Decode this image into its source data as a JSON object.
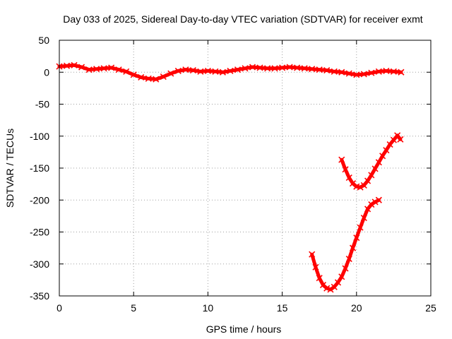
{
  "chart_data": {
    "type": "scatter",
    "title": "Day 033 of 2025, Sidereal Day-to-day VTEC variation (SDTVAR) for receiver exmt",
    "xlabel": "GPS time / hours",
    "ylabel": "SDTVAR / TECUs",
    "xlim": [
      0,
      25
    ],
    "ylim": [
      -350,
      50
    ],
    "xticks": [
      0,
      5,
      10,
      15,
      20,
      25
    ],
    "yticks": [
      -350,
      -300,
      -250,
      -200,
      -150,
      -100,
      -50,
      0,
      50
    ],
    "grid": true,
    "colors": {
      "series": "#ff0000"
    },
    "series": [
      {
        "x": [
          0.0,
          0.5,
          1.0,
          1.5,
          2.0,
          2.5,
          3.0,
          3.5,
          4.0,
          4.5,
          5.0,
          5.5,
          6.0,
          6.5,
          7.0,
          7.5,
          8.0,
          8.5,
          9.0,
          9.5,
          10.0,
          10.5,
          11.0,
          11.5,
          12.0,
          12.5,
          13.0,
          13.5,
          14.0,
          14.5,
          15.0,
          15.5,
          16.0,
          16.5,
          17.0,
          17.5,
          18.0,
          18.5,
          19.0,
          19.5,
          20.0,
          20.5,
          21.0,
          21.5,
          22.0,
          22.5,
          23.0
        ],
        "y": [
          9,
          10,
          11,
          8,
          4,
          5,
          6,
          7,
          4,
          1,
          -4,
          -8,
          -10,
          -11,
          -7,
          -2,
          2,
          4,
          3,
          1,
          2,
          1,
          0,
          2,
          4,
          6,
          8,
          7,
          6,
          6,
          7,
          8,
          7,
          6,
          5,
          4,
          3,
          1,
          0,
          -2,
          -4,
          -3,
          -1,
          1,
          2,
          1,
          0
        ]
      },
      {
        "x": [
          19.0,
          19.25,
          19.5,
          19.75,
          20.0,
          20.25,
          20.5,
          20.75,
          21.0,
          21.25,
          21.5,
          21.75,
          22.0,
          22.25,
          22.5,
          22.75,
          22.95
        ],
        "y": [
          -137,
          -152,
          -165,
          -174,
          -179,
          -180,
          -177,
          -170,
          -161,
          -151,
          -141,
          -131,
          -122,
          -113,
          -106,
          -99,
          -105
        ]
      },
      {
        "x": [
          17.0,
          17.25,
          17.5,
          17.75,
          18.0,
          18.25,
          18.5,
          18.75,
          19.0,
          19.25,
          19.5,
          19.75,
          20.0,
          20.25,
          20.5,
          20.75,
          21.0,
          21.25,
          21.5
        ],
        "y": [
          -285,
          -305,
          -322,
          -333,
          -338,
          -340,
          -336,
          -329,
          -320,
          -307,
          -292,
          -275,
          -259,
          -243,
          -228,
          -214,
          -207,
          -203,
          -200
        ]
      }
    ]
  }
}
